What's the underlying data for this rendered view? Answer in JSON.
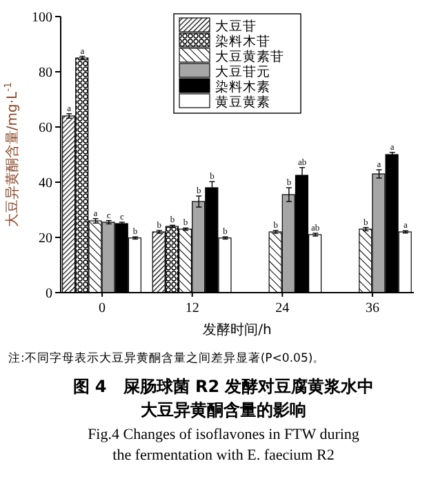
{
  "chart_data": {
    "type": "bar",
    "title": "图 4　屎肠球菌 R2 发酵对豆腐黄浆水中大豆异黄酮含量的影响",
    "subtitle": "Fig.4 Changes of isoflavones in FTW during the fermentation with E. faecium R2",
    "xlabel": "发酵时间/h",
    "ylabel": "大豆异黄酮含量/mg·L$^{-1}$",
    "annotations": [
      "注:不同字母表示大豆异黄酮含量之间差异显著(P<0.05)。"
    ],
    "categories": [
      "0",
      "12",
      "24",
      "36"
    ],
    "series": [
      {
        "name": "大豆苷",
        "color": "#000000",
        "values": [
          64,
          22,
          null,
          null
        ],
        "errors": [
          0.8,
          0.5,
          null,
          null
        ],
        "value_labels": [
          "a",
          "b",
          null,
          null
        ]
      },
      {
        "name": "染料木苷",
        "color": "#000000",
        "values": [
          85,
          24,
          null,
          null
        ],
        "errors": [
          0.6,
          0.4,
          null,
          null
        ],
        "value_labels": [
          "a",
          "b",
          null,
          null
        ]
      },
      {
        "name": "大豆黄素苷",
        "color": "#000000",
        "values": [
          26,
          23,
          22,
          23
        ],
        "errors": [
          0.8,
          0.4,
          0.5,
          0.6
        ],
        "value_labels": [
          "a",
          "b",
          "b",
          "b"
        ]
      },
      {
        "name": "大豆苷元",
        "color": "#a6a6a6",
        "values": [
          25.5,
          33,
          35.5,
          43
        ],
        "errors": [
          0.6,
          2,
          2.5,
          1.5
        ],
        "value_labels": [
          "c",
          "b",
          "b",
          "a"
        ]
      },
      {
        "name": "染料木素",
        "color": "#000000",
        "values": [
          25,
          38,
          42.5,
          50
        ],
        "errors": [
          0.5,
          2.2,
          2.8,
          0.8
        ],
        "value_labels": [
          "c",
          "b",
          "ab",
          "a"
        ]
      },
      {
        "name": "黄豆黄素",
        "color": "#ffffff",
        "values": [
          19.8,
          19.8,
          21,
          22
        ],
        "errors": [
          0.4,
          0.4,
          0.5,
          0.4
        ],
        "value_labels": [
          "b",
          "b",
          "ab",
          "a"
        ]
      }
    ],
    "ylim": [
      0,
      100
    ],
    "yticks": [
      0,
      20,
      40,
      60,
      80,
      100
    ],
    "legend": "top"
  }
}
